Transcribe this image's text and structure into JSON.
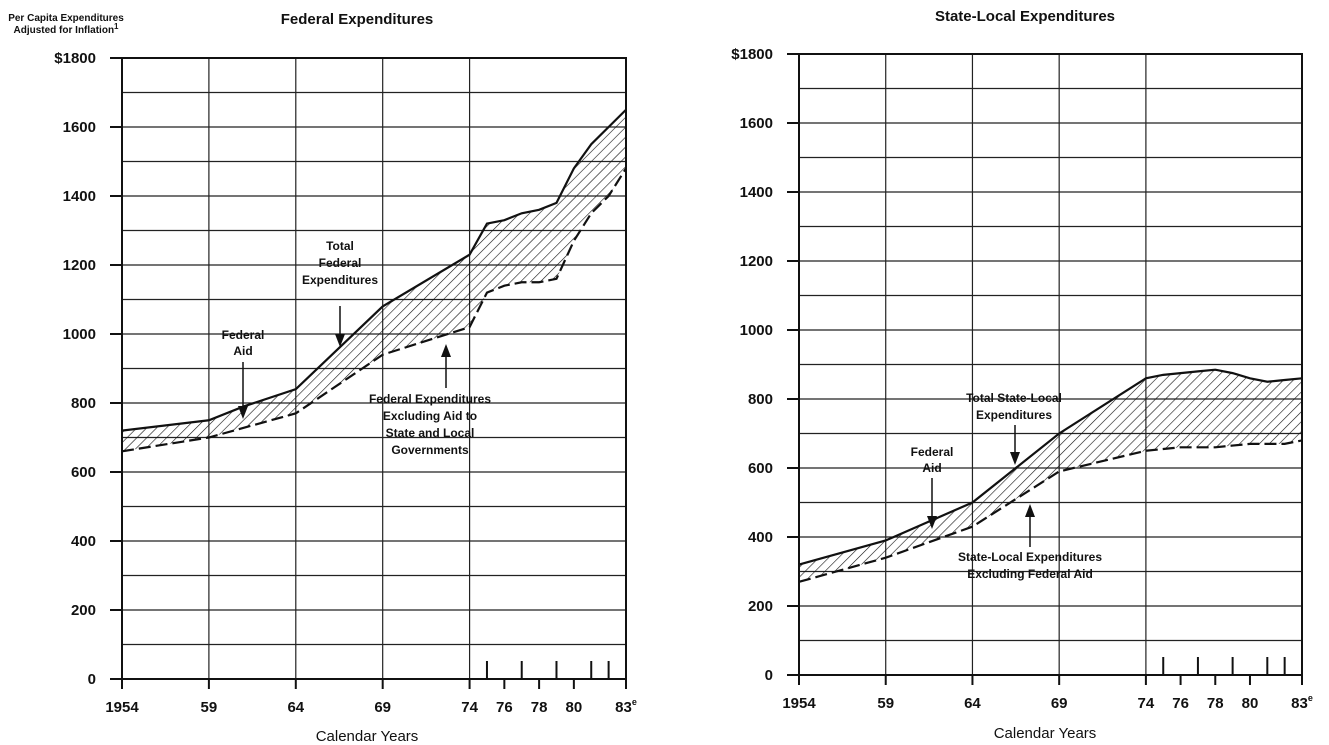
{
  "chart_data": [
    {
      "type": "area",
      "title": "Federal Expenditures",
      "ylabel_lines": [
        "Per Capita Expenditures",
        "Adjusted for Inflation"
      ],
      "ylabel_sup": "1",
      "xlabel": "Calendar Years",
      "ylim": [
        0,
        1800
      ],
      "yticks": [
        "$1800",
        "1600",
        "1400",
        "1200",
        "1000",
        "800",
        "600",
        "400",
        "200",
        "0"
      ],
      "ytick_values": [
        1800,
        1600,
        1400,
        1200,
        1000,
        800,
        600,
        400,
        200,
        0
      ],
      "xlim": [
        1954,
        1983
      ],
      "xticks": [
        "1954",
        "59",
        "64",
        "69",
        "74",
        "76",
        "78",
        "80",
        "83"
      ],
      "xtick_values": [
        1954,
        1959,
        1964,
        1969,
        1974,
        1976,
        1978,
        1980,
        1983
      ],
      "last_tick_sup": "e",
      "grid": true,
      "series": [
        {
          "name": "Total Federal Expenditures",
          "x": [
            1954,
            1959,
            1961,
            1964,
            1969,
            1974,
            1975,
            1976,
            1977,
            1978,
            1979,
            1980,
            1981,
            1982,
            1983
          ],
          "values": [
            720,
            750,
            790,
            840,
            1080,
            1230,
            1320,
            1330,
            1350,
            1360,
            1380,
            1480,
            1550,
            1600,
            1650
          ]
        },
        {
          "name": "Federal Expenditures Excluding Aid to State and Local Governments",
          "x": [
            1954,
            1959,
            1964,
            1969,
            1974,
            1975,
            1976,
            1977,
            1978,
            1979,
            1980,
            1981,
            1982,
            1983
          ],
          "values": [
            660,
            700,
            770,
            940,
            1020,
            1120,
            1140,
            1150,
            1150,
            1160,
            1270,
            1350,
            1400,
            1480
          ]
        }
      ],
      "annotations": [
        {
          "lines": [
            "Total",
            "Federal",
            "Expenditures"
          ]
        },
        {
          "lines": [
            "Federal",
            "Aid"
          ]
        },
        {
          "lines": [
            "Federal Expenditures",
            "Excluding Aid to",
            "State and Local",
            "Governments"
          ]
        }
      ]
    },
    {
      "type": "area",
      "title": "State-Local Expenditures",
      "xlabel": "Calendar Years",
      "ylim": [
        0,
        1800
      ],
      "yticks": [
        "$1800",
        "1600",
        "1400",
        "1200",
        "1000",
        "800",
        "600",
        "400",
        "200",
        "0"
      ],
      "ytick_values": [
        1800,
        1600,
        1400,
        1200,
        1000,
        800,
        600,
        400,
        200,
        0
      ],
      "xlim": [
        1954,
        1983
      ],
      "xticks": [
        "1954",
        "59",
        "64",
        "69",
        "74",
        "76",
        "78",
        "80",
        "83"
      ],
      "xtick_values": [
        1954,
        1959,
        1964,
        1969,
        1974,
        1976,
        1978,
        1980,
        1983
      ],
      "last_tick_sup": "e",
      "grid": true,
      "series": [
        {
          "name": "Total State-Local Expenditures",
          "x": [
            1954,
            1959,
            1964,
            1969,
            1974,
            1975,
            1976,
            1977,
            1978,
            1979,
            1980,
            1981,
            1982,
            1983
          ],
          "values": [
            320,
            390,
            500,
            700,
            860,
            870,
            875,
            880,
            885,
            875,
            860,
            850,
            855,
            860
          ]
        },
        {
          "name": "State-Local Expenditures Excluding Federal Aid",
          "x": [
            1954,
            1959,
            1964,
            1969,
            1974,
            1975,
            1976,
            1977,
            1978,
            1979,
            1980,
            1981,
            1982,
            1983
          ],
          "values": [
            270,
            340,
            430,
            590,
            650,
            655,
            660,
            660,
            660,
            665,
            670,
            670,
            670,
            680
          ]
        }
      ],
      "annotations": [
        {
          "lines": [
            "Total State-Local",
            "Expenditures"
          ]
        },
        {
          "lines": [
            "Federal",
            "Aid"
          ]
        },
        {
          "lines": [
            "State-Local Expenditures",
            "Excluding Federal Aid"
          ]
        }
      ]
    }
  ]
}
